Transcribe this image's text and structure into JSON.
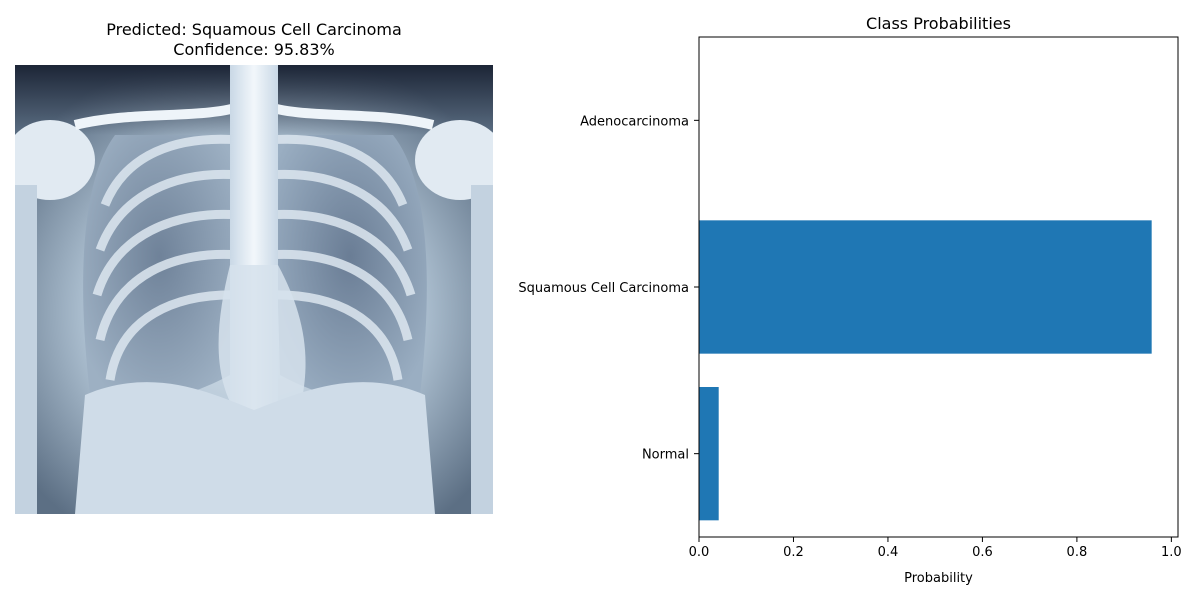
{
  "left_panel": {
    "title_line1": "Predicted: Squamous Cell Carcinoma",
    "title_line2": "Confidence: 95.83%",
    "image_desc": "chest-xray"
  },
  "chart_data": {
    "type": "bar",
    "orientation": "horizontal",
    "title": "Class Probabilities",
    "xlabel": "Probability",
    "ylabel": "",
    "categories": [
      "Adenocarcinoma",
      "Squamous Cell Carcinoma",
      "Normal"
    ],
    "values": [
      0.0,
      0.9583,
      0.0417
    ],
    "xlim": [
      0,
      1.0
    ],
    "xticks": [
      "0.0",
      "0.2",
      "0.4",
      "0.6",
      "0.8",
      "1.0"
    ],
    "grid": false,
    "bar_color": "#1f77b4"
  }
}
